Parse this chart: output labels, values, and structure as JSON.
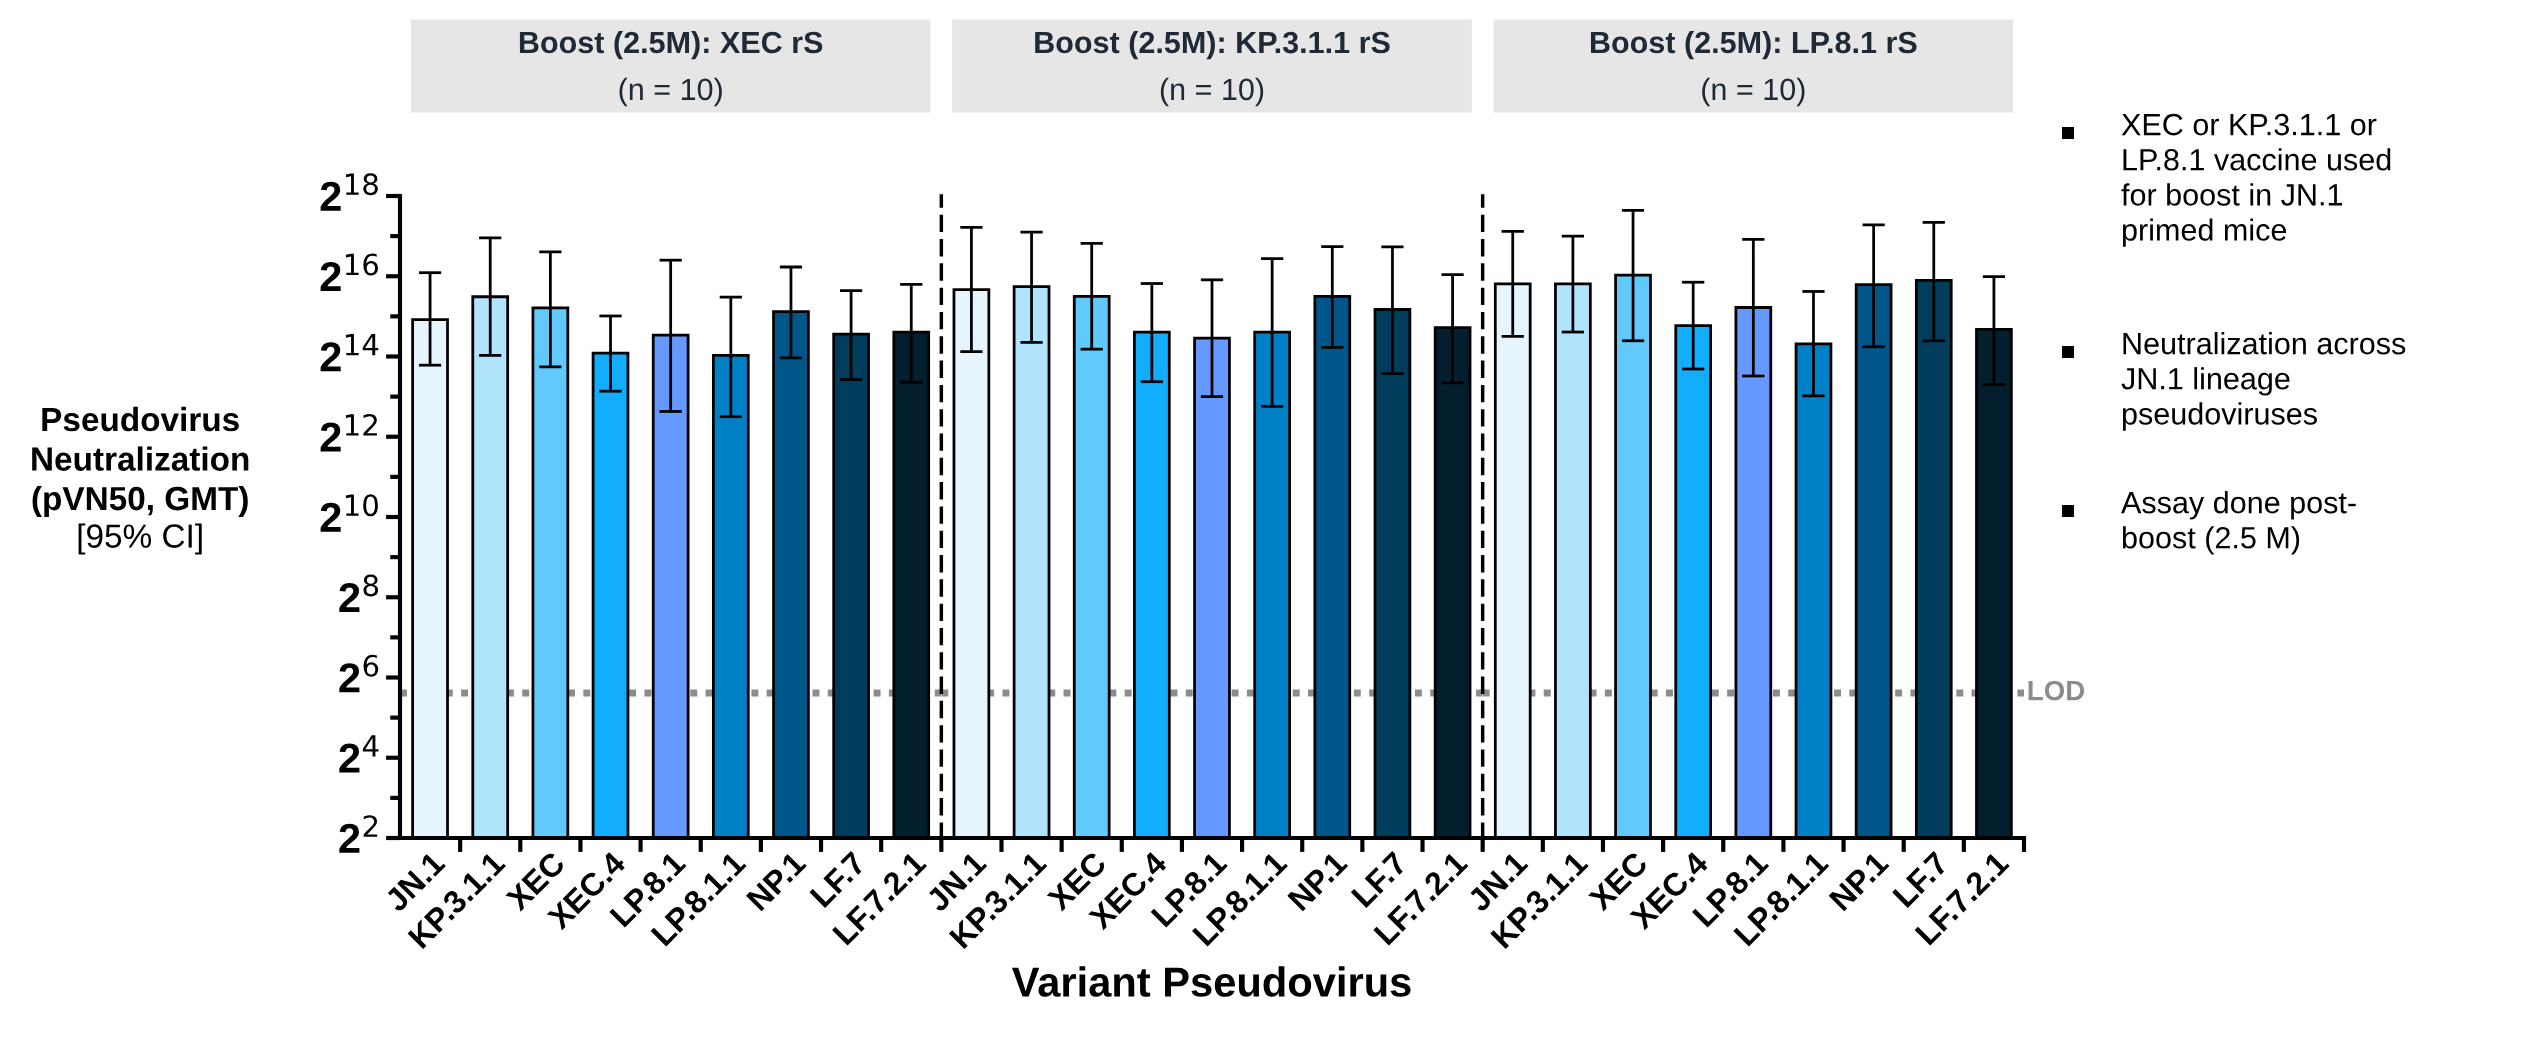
{
  "chart_data": [
    {
      "type": "bar",
      "title": "Boost (2.5M): XEC rS",
      "subtitle": "(n = 10)",
      "ylabel": "Pseudovirus\nNeutralization\n(pVN50, GMT)\n[95% CI]",
      "log": "y",
      "categories": [
        "JN.1",
        "KP.3.1.1",
        "XEC",
        "XEC.4",
        "LP.8.1",
        "LP.8.1.1",
        "NP.1",
        "LF.7",
        "LF.7.2.1"
      ],
      "values": [
        31000,
        46000,
        38000,
        17400,
        23700,
        16700,
        35600,
        24100,
        25000
      ],
      "errors": [
        [
          14100,
          69700
        ],
        [
          16700,
          127000
        ],
        [
          13700,
          100000
        ],
        [
          9000,
          33000
        ],
        [
          6340,
          86500
        ],
        [
          5790,
          45700
        ],
        [
          16000,
          76900
        ],
        [
          11000,
          51100
        ],
        [
          10500,
          57000
        ]
      ],
      "colors": [
        "#e6f5fd",
        "#b0e4fd",
        "#62c9fd",
        "#12aefd",
        "#6699ff",
        "#0080c6",
        "#005689",
        "#003c5c",
        "#031e2d"
      ],
      "ylim": [
        4,
        262144
      ],
      "yticks": [
        {
          "value": 4,
          "label": "2$^{2}$"
        },
        {
          "value": 16,
          "label": "2$^{4}$"
        },
        {
          "value": 64,
          "label": "2$^{6}$"
        },
        {
          "value": 256,
          "label": "2$^{8}$"
        },
        {
          "value": 1024,
          "label": "2$^{10}$"
        },
        {
          "value": 4096,
          "label": "2$^{12}$"
        },
        {
          "value": 16384,
          "label": "2$^{14}$"
        },
        {
          "value": 65536,
          "label": "2$^{16}$"
        },
        {
          "value": 262144,
          "label": "2$^{18}$"
        }
      ],
      "ref_lines": [
        {
          "axis": "y",
          "value": 49,
          "color": "#8c8c8c",
          "line_style": "dotted"
        }
      ]
    },
    {
      "type": "bar",
      "title": "Boost (2.5M): KP.3.1.1 rS",
      "subtitle": "(n = 10)",
      "xlabel": "Variant Pseudovirus",
      "log": "y",
      "tick_labels": "x",
      "categories": [
        "JN.1",
        "KP.3.1.1",
        "XEC",
        "XEC.4",
        "LP.8.1",
        "LP.8.1.1",
        "NP.1",
        "LF.7",
        "LF.7.2.1"
      ],
      "values": [
        52100,
        54700,
        46300,
        25000,
        22500,
        25000,
        46300,
        36900,
        27000
      ],
      "errors": [
        [
          17800,
          152700
        ],
        [
          20900,
          140500
        ],
        [
          18600,
          115700
        ],
        [
          10600,
          57800
        ],
        [
          8190,
          61600
        ],
        [
          6930,
          88900
        ],
        [
          19200,
          109500
        ],
        [
          12200,
          108700
        ],
        [
          10400,
          67400
        ]
      ],
      "colors": [
        "#e6f5fd",
        "#b0e4fd",
        "#62c9fd",
        "#12aefd",
        "#6699ff",
        "#0080c6",
        "#005689",
        "#003c5c",
        "#031e2d"
      ],
      "ylim": [
        4,
        262144
      ],
      "ref_lines": [
        {
          "axis": "y",
          "value": 49,
          "color": "#8c8c8c",
          "line_style": "dotted"
        }
      ]
    },
    {
      "type": "bar",
      "title": "Boost (2.5M): LP.8.1 rS",
      "subtitle": "(n = 10)",
      "log": "y",
      "tick_labels": "x",
      "categories": [
        "JN.1",
        "KP.3.1.1",
        "XEC",
        "XEC.4",
        "LP.8.1",
        "LP.8.1.1",
        "NP.1",
        "LF.7",
        "LF.7.2.1"
      ],
      "values": [
        57400,
        57400,
        66900,
        27900,
        38200,
        20400,
        56700,
        61100,
        26200
      ],
      "errors": [
        [
          23200,
          142500
        ],
        [
          25000,
          131072
        ],
        [
          21500,
          204200
        ],
        [
          13200,
          59100
        ],
        [
          11700,
          124000
        ],
        [
          8300,
          50400
        ],
        [
          19400,
          159100
        ],
        [
          21500,
          165900
        ],
        [
          10100,
          65100
        ]
      ],
      "colors": [
        "#e6f5fd",
        "#b0e4fd",
        "#62c9fd",
        "#12aefd",
        "#6699ff",
        "#0080c6",
        "#005689",
        "#003c5c",
        "#031e2d"
      ],
      "ylim": [
        4,
        262144
      ],
      "ref_lines": [
        {
          "axis": "y",
          "value": 49,
          "label": "LOD",
          "color": "#8c8c8c",
          "line_style": "dotted"
        }
      ],
      "annotations": [
        "XEC or KP.3.1.1 or\nLP.8.1 vaccine used\nfor boost in JN.1\nprimed mice",
        "Neutralization across\nJN.1 lineage\npseudoviruses",
        "Assay done post-\nboost (2.5 M)"
      ]
    }
  ]
}
